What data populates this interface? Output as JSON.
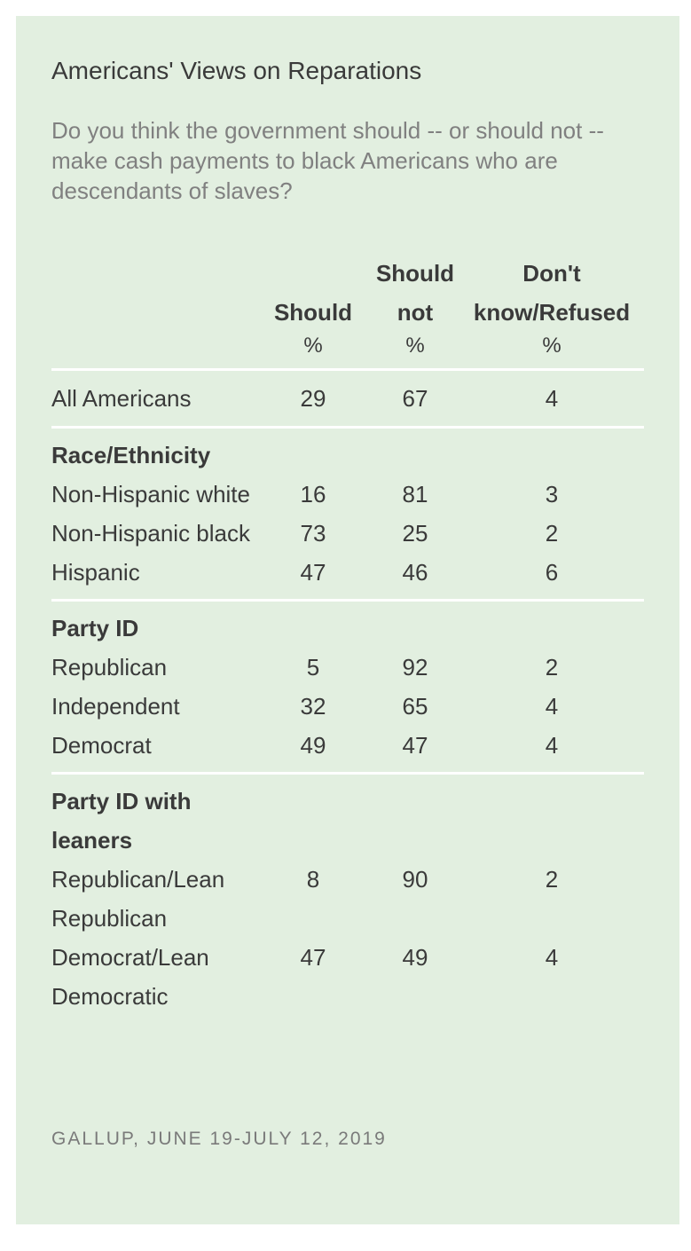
{
  "title": "Americans' Views on Reparations",
  "question": "Do you think the government should -- or should not -- make cash payments to black Americans who are descendants of slaves?",
  "headers": {
    "col1": "Should",
    "col2_line1": "Should",
    "col2_line2": "not",
    "col3_line1": "Don't",
    "col3_line2": "know/Refused",
    "unit": "%"
  },
  "all": {
    "label": "All Americans",
    "should": "29",
    "should_not": "67",
    "dk": "4"
  },
  "groups": [
    {
      "title": "Race/Ethnicity",
      "rows": [
        {
          "label": "Non-Hispanic white",
          "should": "16",
          "should_not": "81",
          "dk": "3"
        },
        {
          "label": "Non-Hispanic black",
          "should": "73",
          "should_not": "25",
          "dk": "2"
        },
        {
          "label": "Hispanic",
          "should": "47",
          "should_not": "46",
          "dk": "6"
        }
      ]
    },
    {
      "title": "Party ID",
      "rows": [
        {
          "label": "Republican",
          "should": "5",
          "should_not": "92",
          "dk": "2"
        },
        {
          "label": "Independent",
          "should": "32",
          "should_not": "65",
          "dk": "4"
        },
        {
          "label": "Democrat",
          "should": "49",
          "should_not": "47",
          "dk": "4"
        }
      ]
    },
    {
      "title": "Party ID with leaners",
      "rows": [
        {
          "label": "Republican/Lean Republican",
          "should": "8",
          "should_not": "90",
          "dk": "2"
        },
        {
          "label": "Democrat/Lean Democratic",
          "should": "47",
          "should_not": "49",
          "dk": "4"
        }
      ]
    }
  ],
  "source": "GALLUP, JUNE 19-JULY 12, 2019"
}
